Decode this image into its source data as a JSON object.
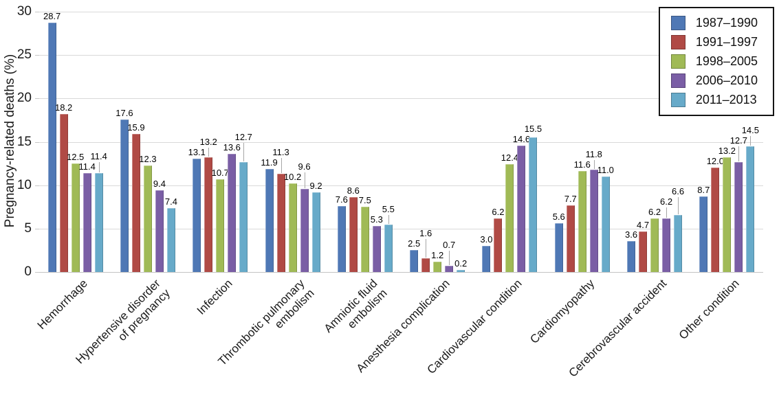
{
  "chart_data": {
    "type": "bar",
    "title": "",
    "xlabel": "",
    "ylabel": "Pregnancy-related deaths (%)",
    "ylim": [
      0,
      30
    ],
    "yticks": [
      0,
      5,
      10,
      15,
      20,
      25,
      30
    ],
    "grid": true,
    "value_labels": true,
    "value_label_decimals": 1,
    "legend_position": "top-right",
    "categories": [
      "Hemorrhage",
      "Hypertensive disorder\nof pregnancy",
      "Infection",
      "Thrombotic pulmonary\nembolism",
      "Amniotic fluid\nembolism",
      "Anesthesia complication",
      "Cardiovascular condition",
      "Cardiomyopathy",
      "Cerebrovascular accident",
      "Other condition"
    ],
    "series": [
      {
        "name": "1987–1990",
        "color": "#4f78b5",
        "values": [
          28.7,
          17.6,
          13.1,
          11.9,
          7.6,
          2.5,
          3.0,
          5.6,
          3.6,
          8.7
        ]
      },
      {
        "name": "1991–1997",
        "color": "#b04a45",
        "values": [
          18.2,
          15.9,
          13.2,
          11.3,
          8.6,
          1.6,
          6.2,
          7.7,
          4.7,
          12.0
        ]
      },
      {
        "name": "1998–2005",
        "color": "#a0ba56",
        "values": [
          12.5,
          12.3,
          10.7,
          10.2,
          7.5,
          1.2,
          12.4,
          11.6,
          6.2,
          13.2
        ]
      },
      {
        "name": "2006–2010",
        "color": "#7a5ea5",
        "values": [
          11.4,
          9.4,
          13.6,
          9.6,
          5.3,
          0.7,
          14.6,
          11.8,
          6.2,
          12.7
        ]
      },
      {
        "name": "2011–2013",
        "color": "#67aac9",
        "values": [
          11.4,
          7.4,
          12.7,
          9.2,
          5.5,
          0.2,
          15.5,
          11.0,
          6.6,
          14.5
        ]
      }
    ]
  }
}
